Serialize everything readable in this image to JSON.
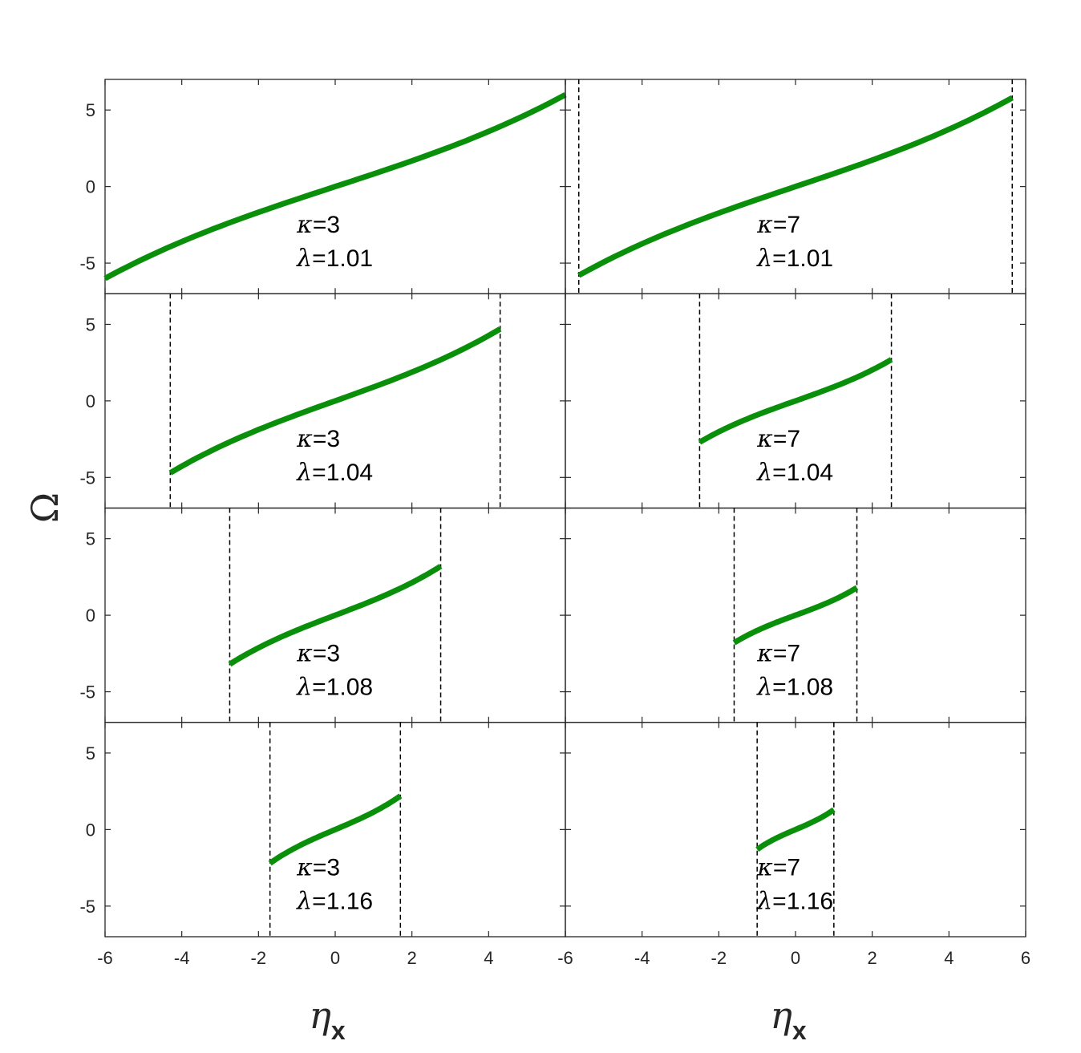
{
  "chart_data": {
    "type": "line",
    "layout": "4 rows x 2 columns, shared axes",
    "xlabel": "η",
    "xlabel_subscript": "x",
    "ylabel": "Ω",
    "xlim": [
      -6,
      6
    ],
    "ylim": [
      -7,
      7
    ],
    "xticks": [
      -6,
      -4,
      -2,
      0,
      2,
      4,
      6
    ],
    "xtick_labels_left": [
      "-6",
      "-4",
      "-2",
      "0",
      "2",
      "4"
    ],
    "xtick_labels_right": [
      "-6",
      "-4",
      "-2",
      "0",
      "2",
      "4",
      "6"
    ],
    "yticks": [
      -5,
      0,
      5
    ],
    "ytick_labels": [
      "-5",
      "0",
      "5"
    ],
    "grid": false,
    "line_color": "#0a8f0a",
    "dashed_line_color": "#000000",
    "panels": [
      {
        "row": 0,
        "col": 0,
        "kappa": "3",
        "lambda": "1.01",
        "x": [
          -6,
          0,
          6
        ],
        "y": [
          -6.0,
          0,
          6.0
        ],
        "dashed_x": []
      },
      {
        "row": 0,
        "col": 1,
        "kappa": "7",
        "lambda": "1.01",
        "x": [
          -5.65,
          0,
          5.65
        ],
        "y": [
          -5.8,
          0,
          5.8
        ],
        "dashed_x": [
          -5.65,
          5.65
        ]
      },
      {
        "row": 1,
        "col": 0,
        "kappa": "3",
        "lambda": "1.04",
        "x": [
          -4.3,
          0,
          4.3
        ],
        "y": [
          -4.7,
          0,
          4.7
        ],
        "dashed_x": [
          -4.3,
          4.3
        ]
      },
      {
        "row": 1,
        "col": 1,
        "kappa": "7",
        "lambda": "1.04",
        "x": [
          -2.5,
          0,
          2.5
        ],
        "y": [
          -2.7,
          0,
          2.7
        ],
        "dashed_x": [
          -2.5,
          2.5
        ]
      },
      {
        "row": 2,
        "col": 0,
        "kappa": "3",
        "lambda": "1.08",
        "x": [
          -2.75,
          0,
          2.75
        ],
        "y": [
          -3.2,
          0,
          3.2
        ],
        "dashed_x": [
          -2.75,
          2.75
        ]
      },
      {
        "row": 2,
        "col": 1,
        "kappa": "7",
        "lambda": "1.08",
        "x": [
          -1.6,
          0,
          1.6
        ],
        "y": [
          -1.8,
          0,
          1.8
        ],
        "dashed_x": [
          -1.6,
          1.6
        ]
      },
      {
        "row": 3,
        "col": 0,
        "kappa": "3",
        "lambda": "1.16",
        "x": [
          -1.7,
          0,
          1.7
        ],
        "y": [
          -2.2,
          0,
          2.2
        ],
        "dashed_x": [
          -1.7,
          1.7
        ]
      },
      {
        "row": 3,
        "col": 1,
        "kappa": "7",
        "lambda": "1.16",
        "x": [
          -1.0,
          0,
          1.0
        ],
        "y": [
          -1.3,
          0,
          1.3
        ],
        "dashed_x": [
          -1.0,
          1.0
        ]
      }
    ]
  }
}
